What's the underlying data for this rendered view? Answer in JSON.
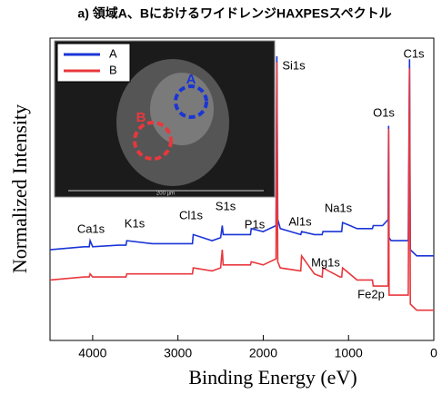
{
  "chart_data": {
    "type": "line",
    "title": "a) 領域A、BにおけるワイドレンジHAXPESスペクトル",
    "x_label": "Binding Energy (eV)",
    "y_label": "Normalized Intensity",
    "xlim": [
      4500,
      0
    ],
    "xticks": [
      4000,
      3000,
      2000,
      1000,
      0
    ],
    "ylim": [
      0,
      1
    ],
    "x": [
      4500,
      4100,
      4040,
      4030,
      4000,
      3700,
      3610,
      3600,
      3300,
      2830,
      2820,
      2600,
      2500,
      2480,
      2470,
      2300,
      2150,
      2140,
      2000,
      1850,
      1840,
      1830,
      1800,
      1560,
      1550,
      1400,
      1310,
      1300,
      1100,
      1080,
      1070,
      900,
      720,
      710,
      600,
      535,
      530,
      525,
      500,
      300,
      285,
      275,
      200,
      0
    ],
    "series": [
      {
        "name": "A",
        "color": "#1a35d6",
        "values": [
          0.3,
          0.31,
          0.31,
          0.33,
          0.31,
          0.315,
          0.315,
          0.33,
          0.32,
          0.32,
          0.35,
          0.33,
          0.34,
          0.38,
          0.35,
          0.35,
          0.35,
          0.37,
          0.36,
          0.38,
          0.94,
          0.4,
          0.37,
          0.35,
          0.36,
          0.35,
          0.35,
          0.36,
          0.36,
          0.36,
          0.39,
          0.37,
          0.37,
          0.38,
          0.38,
          0.4,
          0.71,
          0.34,
          0.33,
          0.33,
          0.93,
          0.3,
          0.28,
          0.28
        ]
      },
      {
        "name": "B",
        "color": "#e8383d",
        "values": [
          0.2,
          0.21,
          0.21,
          0.22,
          0.21,
          0.21,
          0.21,
          0.22,
          0.22,
          0.22,
          0.24,
          0.23,
          0.24,
          0.3,
          0.25,
          0.25,
          0.25,
          0.26,
          0.25,
          0.27,
          0.92,
          0.26,
          0.24,
          0.23,
          0.28,
          0.22,
          0.21,
          0.24,
          0.21,
          0.21,
          0.24,
          0.2,
          0.2,
          0.18,
          0.18,
          0.18,
          0.7,
          0.15,
          0.15,
          0.15,
          0.9,
          0.12,
          0.1,
          0.1
        ]
      }
    ],
    "annotations": [
      "Ca1s",
      "K1s",
      "Cl1s",
      "S1s",
      "P1s",
      "Al1s",
      "Na1s",
      "Si1s",
      "C1s",
      "O1s",
      "Mg1s",
      "Fe2p"
    ],
    "inset": {
      "labels": [
        "A",
        "B"
      ],
      "scale_bar": "200 µm"
    }
  }
}
